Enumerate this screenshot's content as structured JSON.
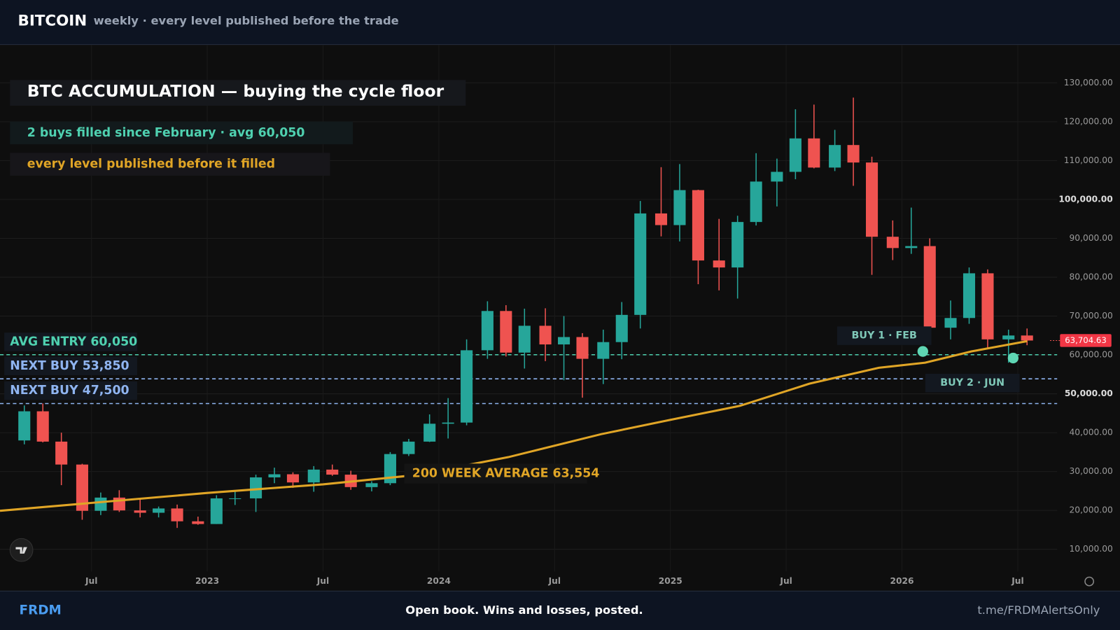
{
  "header": {
    "title": "BITCOIN",
    "subtitle": "weekly · every level published before the trade"
  },
  "footer": {
    "brand": "FRDM",
    "tagline": "Open book. Wins and losses, posted.",
    "link": "t.me/FRDMAlertsOnly"
  },
  "chart_data": {
    "type": "candlestick",
    "title": "BTC ACCUMULATION — buying the cycle floor",
    "subtitle": "2 buys filled since February · avg 60,050",
    "note": "every level published before it filled",
    "up_color": "#26a69a",
    "down_color": "#ef5350",
    "xlim": [
      2022.105,
      2026.67
    ],
    "xticks": [
      {
        "value": 2022.5,
        "label": "Jul"
      },
      {
        "value": 2023.0,
        "label": "2023"
      },
      {
        "value": 2023.5,
        "label": "Jul"
      },
      {
        "value": 2024.0,
        "label": "2024"
      },
      {
        "value": 2024.5,
        "label": "Jul"
      },
      {
        "value": 2025.0,
        "label": "2025"
      },
      {
        "value": 2025.5,
        "label": "Jul"
      },
      {
        "value": 2026.0,
        "label": "2026"
      },
      {
        "value": 2026.5,
        "label": "Jul"
      }
    ],
    "ylim": [
      0,
      140000
    ],
    "yticks": [
      {
        "value": 10000,
        "label": "10,000.00"
      },
      {
        "value": 20000,
        "label": "20,000.00"
      },
      {
        "value": 30000,
        "label": "30,000.00"
      },
      {
        "value": 40000,
        "label": "40,000.00"
      },
      {
        "value": 50000,
        "label": "50,000.00"
      },
      {
        "value": 60000,
        "label": "60,000.00"
      },
      {
        "value": 70000,
        "label": "70,000.00"
      },
      {
        "value": 80000,
        "label": "80,000.00"
      },
      {
        "value": 90000,
        "label": "90,000.00"
      },
      {
        "value": 100000,
        "label": "100,000.00"
      },
      {
        "value": 110000,
        "label": "110,000.00"
      },
      {
        "value": 120000,
        "label": "120,000.00"
      },
      {
        "value": 130000,
        "label": "130,000.00"
      }
    ],
    "grid": true,
    "candles": {
      "x": [
        2022.21,
        2022.29,
        2022.37,
        2022.46,
        2022.54,
        2022.62,
        2022.71,
        2022.79,
        2022.87,
        2022.96,
        2023.04,
        2023.12,
        2023.21,
        2023.29,
        2023.37,
        2023.46,
        2023.54,
        2023.62,
        2023.71,
        2023.79,
        2023.87,
        2023.96,
        2024.04,
        2024.12,
        2024.21,
        2024.29,
        2024.37,
        2024.46,
        2024.54,
        2024.62,
        2024.71,
        2024.79,
        2024.87,
        2024.96,
        2025.04,
        2025.12,
        2025.21,
        2025.29,
        2025.37,
        2025.46,
        2025.54,
        2025.62,
        2025.71,
        2025.79,
        2025.87,
        2025.96,
        2026.04,
        2026.12,
        2026.21,
        2026.29,
        2026.37,
        2026.46,
        2026.54
      ],
      "open": [
        38000,
        45500,
        37700,
        31800,
        19900,
        23300,
        20000,
        19400,
        20500,
        17200,
        16500,
        23100,
        23100,
        28500,
        29300,
        27200,
        30500,
        29200,
        26000,
        27000,
        34500,
        37700,
        42300,
        42600,
        61200,
        71300,
        60600,
        67500,
        62700,
        64600,
        59000,
        63300,
        70300,
        96400,
        93400,
        102400,
        84300,
        82500,
        94200,
        104600,
        107100,
        115700,
        108200,
        114000,
        109500,
        90400,
        87500,
        88000,
        67000,
        69500,
        81000,
        64000,
        65000
      ],
      "high": [
        47000,
        47500,
        40000,
        32000,
        24600,
        25200,
        22800,
        21000,
        21500,
        18400,
        23900,
        25200,
        29200,
        31000,
        29800,
        31400,
        31800,
        30200,
        27500,
        35000,
        38400,
        44700,
        48900,
        64000,
        73800,
        72800,
        71900,
        72000,
        70000,
        65600,
        66500,
        73600,
        99600,
        108300,
        109100,
        102500,
        95000,
        95800,
        111900,
        110500,
        123200,
        124400,
        117900,
        126200,
        111000,
        94600,
        97900,
        90000,
        74000,
        82500,
        82000,
        66500,
        66800
      ],
      "low": [
        37000,
        37500,
        26500,
        17600,
        18800,
        19600,
        18200,
        18200,
        15500,
        16300,
        16500,
        21400,
        19600,
        27000,
        25800,
        24800,
        28900,
        25300,
        24900,
        26500,
        34000,
        37600,
        38500,
        41900,
        59000,
        59600,
        56500,
        58400,
        53500,
        49000,
        52500,
        58900,
        66800,
        90500,
        89200,
        78200,
        76600,
        74500,
        93300,
        98200,
        105200,
        108000,
        107300,
        103500,
        80600,
        84400,
        86000,
        63000,
        64000,
        68000,
        61500,
        58000,
        62500
      ],
      "close": [
        45500,
        37700,
        31800,
        19900,
        23300,
        20000,
        19400,
        20500,
        17200,
        16500,
        23100,
        23100,
        28500,
        29300,
        27200,
        30500,
        29200,
        26000,
        27000,
        34500,
        37700,
        42300,
        42600,
        61200,
        71300,
        60600,
        67500,
        62700,
        64600,
        59000,
        63300,
        70300,
        96400,
        93400,
        102400,
        84300,
        82500,
        94200,
        104600,
        107100,
        115700,
        108200,
        114000,
        109500,
        90400,
        87500,
        88000,
        67000,
        69500,
        81000,
        64000,
        65000,
        63704.63
      ]
    },
    "moving_average": {
      "label": "200 WEEK AVERAGE 63,554",
      "color": "#e0a526",
      "x": [
        2022.105,
        2023.0,
        2023.5,
        2023.9,
        2024.3,
        2024.7,
        2025.0,
        2025.3,
        2025.6,
        2025.9,
        2026.1,
        2026.3,
        2026.54
      ],
      "values": [
        19900,
        24500,
        26700,
        29100,
        33700,
        39600,
        43300,
        46900,
        52600,
        56700,
        58000,
        60900,
        63554
      ]
    },
    "levels": [
      {
        "label": "AVG ENTRY 60,050",
        "value": 60050,
        "color": "#4fd1b0"
      },
      {
        "label": "NEXT BUY 53,850",
        "value": 53850,
        "color": "#8fb4f0"
      },
      {
        "label": "NEXT BUY 47,500",
        "value": 47500,
        "color": "#8fb4f0"
      }
    ],
    "buys": [
      {
        "label": "BUY 1 · FEB",
        "x": 2026.09,
        "price": 60900
      },
      {
        "label": "BUY 2 · JUN",
        "x": 2026.48,
        "price": 59200
      }
    ],
    "last_price": {
      "value": 63704.63,
      "label": "63,704.63"
    }
  }
}
